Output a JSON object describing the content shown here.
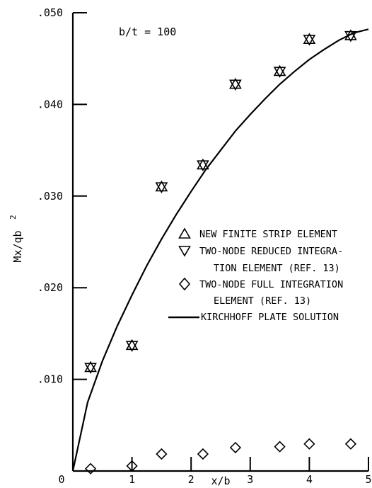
{
  "chart_data": {
    "type": "scatter",
    "annotation": "b/t = 100",
    "xlabel": "x/b",
    "ylabel": "Mx/qb",
    "ylabel_sup": "2",
    "xlim": [
      0,
      5
    ],
    "ylim": [
      0,
      0.05
    ],
    "x_ticks": [
      0,
      1,
      2,
      3,
      4,
      5
    ],
    "x_tick_labels": [
      "0",
      "1",
      "2",
      "3",
      "4",
      "5"
    ],
    "y_ticks": [
      0.01,
      0.02,
      0.03,
      0.04,
      0.05
    ],
    "y_tick_labels": [
      ".010",
      ".020",
      ".030",
      ".040",
      ".050"
    ],
    "grid": false,
    "legend_position": "right",
    "series": [
      {
        "name": "NEW FINITE STRIP ELEMENT",
        "marker": "triangle-up",
        "x": [
          0.3,
          1.0,
          1.5,
          2.2,
          2.75,
          3.5,
          4.0,
          4.7
        ],
        "y": [
          0.0113,
          0.0137,
          0.031,
          0.0334,
          0.0422,
          0.0436,
          0.0471,
          0.0475
        ]
      },
      {
        "name_lines": [
          "TWO-NODE REDUCED INTEGRA-",
          "TION ELEMENT (REF. 13)"
        ],
        "marker": "triangle-down",
        "x": [
          0.3,
          1.0,
          1.5,
          2.2,
          2.75,
          3.5,
          4.0,
          4.7
        ],
        "y": [
          0.0113,
          0.0137,
          0.031,
          0.0334,
          0.0422,
          0.0436,
          0.0471,
          0.0475
        ]
      },
      {
        "name_lines": [
          "TWO-NODE FULL INTEGRATION",
          "ELEMENT (REF. 13)"
        ],
        "marker": "diamond",
        "x": [
          0.3,
          1.0,
          1.5,
          2.2,
          2.75,
          3.5,
          4.0,
          4.7
        ],
        "y": [
          0.0001,
          0.0004,
          0.0017,
          0.0017,
          0.0024,
          0.0025,
          0.0028,
          0.0028
        ]
      },
      {
        "name": "KIRCHHOFF PLATE SOLUTION",
        "style": "line",
        "x": [
          0,
          0.25,
          0.5,
          0.75,
          1.0,
          1.25,
          1.5,
          1.75,
          2.0,
          2.25,
          2.5,
          2.75,
          3.0,
          3.25,
          3.5,
          3.75,
          4.0,
          4.25,
          4.5,
          4.75,
          5.0
        ],
        "y": [
          0,
          0.0075,
          0.012,
          0.0158,
          0.0192,
          0.0224,
          0.0253,
          0.028,
          0.0305,
          0.0329,
          0.035,
          0.0371,
          0.0389,
          0.0406,
          0.0422,
          0.0436,
          0.0449,
          0.046,
          0.047,
          0.0478,
          0.0482
        ]
      }
    ]
  }
}
